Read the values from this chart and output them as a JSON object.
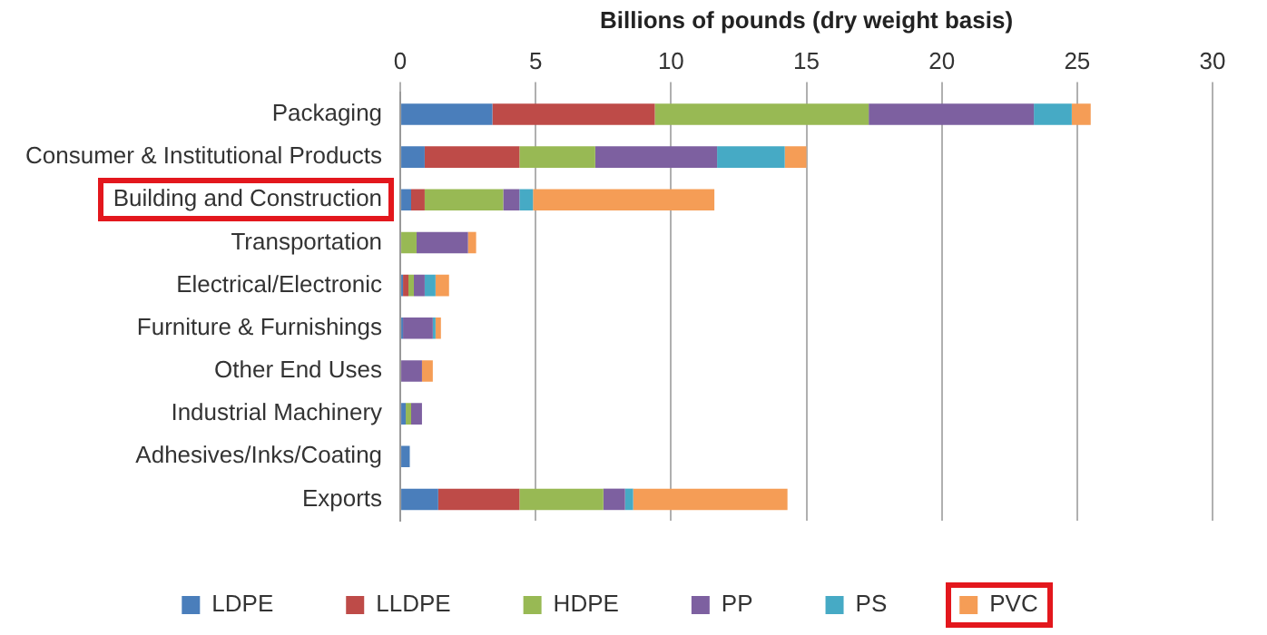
{
  "chart_data": {
    "type": "bar",
    "orientation": "horizontal",
    "stacked": true,
    "xlabel": "Billions of pounds (dry weight basis)",
    "categories": [
      "Packaging",
      "Consumer & Institutional Products",
      "Building and Construction",
      "Transportation",
      "Electrical/Electronic",
      "Furniture & Furnishings",
      "Other End Uses",
      "Industrial Machinery",
      "Adhesives/Inks/Coating",
      "Exports"
    ],
    "series": [
      {
        "name": "LDPE",
        "color": "#4a7ebb",
        "values": [
          3.4,
          0.9,
          0.4,
          0,
          0.1,
          0.1,
          0,
          0.2,
          0.35,
          1.4
        ]
      },
      {
        "name": "LLDPE",
        "color": "#be4b48",
        "values": [
          6.0,
          3.5,
          0.5,
          0,
          0.2,
          0,
          0,
          0,
          0,
          3.0
        ]
      },
      {
        "name": "HDPE",
        "color": "#98b954",
        "values": [
          7.9,
          2.8,
          2.9,
          0.6,
          0.2,
          0,
          0,
          0.2,
          0,
          3.1
        ]
      },
      {
        "name": "PP",
        "color": "#7d60a0",
        "values": [
          6.1,
          4.5,
          0.6,
          1.9,
          0.4,
          1.1,
          0.8,
          0.4,
          0,
          0.8
        ]
      },
      {
        "name": "PS",
        "color": "#46aac5",
        "values": [
          1.4,
          2.5,
          0.5,
          0,
          0.4,
          0.1,
          0,
          0,
          0,
          0.3
        ]
      },
      {
        "name": "PVC",
        "color": "#f59d56",
        "values": [
          0.7,
          0.8,
          6.7,
          0.3,
          0.5,
          0.2,
          0.4,
          0,
          0,
          5.7
        ]
      }
    ],
    "xlim": [
      0,
      30
    ],
    "xticks": [
      0,
      5,
      10,
      15,
      20,
      25,
      30
    ],
    "grid": "x",
    "legend": "bottom"
  }
}
